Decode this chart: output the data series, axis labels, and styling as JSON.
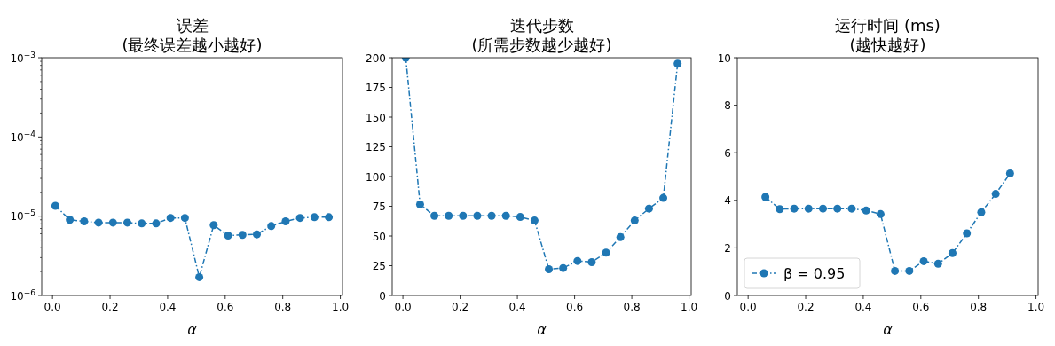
{
  "chart_data": [
    {
      "type": "line",
      "title": "误差\n(最终误差越小越好)",
      "xlabel": "α",
      "log": "y",
      "legend": false,
      "marker": "circle",
      "line_style": "dashdot",
      "xlim": [
        -0.0375,
        1.0075
      ],
      "xticks": [
        {
          "value": 0,
          "label": "0.0"
        },
        {
          "value": 0.2,
          "label": "0.2"
        },
        {
          "value": 0.4,
          "label": "0.4"
        },
        {
          "value": 0.6,
          "label": "0.6"
        },
        {
          "value": 0.8,
          "label": "0.8"
        },
        {
          "value": 1,
          "label": "1.0"
        }
      ],
      "ylim": [
        1e-06,
        0.001
      ],
      "yticks": [
        {
          "value": 1e-06,
          "label": "10$^{−6}$"
        },
        {
          "value": 1e-05,
          "label": "10$^{−5}$"
        },
        {
          "value": 0.0001,
          "label": "10$^{−4}$"
        },
        {
          "value": 0.001,
          "label": "10$^{−3}$"
        }
      ],
      "x": [
        0.01,
        0.06,
        0.11,
        0.16,
        0.21,
        0.26,
        0.31,
        0.36,
        0.41,
        0.46,
        0.51,
        0.56,
        0.61,
        0.66,
        0.71,
        0.76,
        0.81,
        0.86,
        0.91,
        0.96
      ],
      "series": [
        {
          "color": "#1f77b4",
          "values": [
            1.35e-05,
            9e-06,
            8.6e-06,
            8.3e-06,
            8.3e-06,
            8.3e-06,
            8.1e-06,
            8.1e-06,
            9.5e-06,
            9.5e-06,
            1.7e-06,
            7.7e-06,
            5.7e-06,
            5.8e-06,
            5.9e-06,
            7.5e-06,
            8.6e-06,
            9.5e-06,
            9.7e-06,
            9.7e-06
          ]
        }
      ]
    },
    {
      "type": "line",
      "title": "迭代步数\n(所需步数越少越好)",
      "xlabel": "α",
      "legend": false,
      "marker": "circle",
      "line_style": "dashdot",
      "xlim": [
        -0.0375,
        1.0075
      ],
      "xticks": [
        {
          "value": 0,
          "label": "0.0"
        },
        {
          "value": 0.2,
          "label": "0.2"
        },
        {
          "value": 0.4,
          "label": "0.4"
        },
        {
          "value": 0.6,
          "label": "0.6"
        },
        {
          "value": 0.8,
          "label": "0.8"
        },
        {
          "value": 1,
          "label": "1.0"
        }
      ],
      "ylim": [
        0,
        200
      ],
      "yticks": [
        0,
        25,
        50,
        75,
        100,
        125,
        150,
        175,
        200
      ],
      "x": [
        0.01,
        0.06,
        0.11,
        0.16,
        0.21,
        0.26,
        0.31,
        0.36,
        0.41,
        0.46,
        0.51,
        0.56,
        0.61,
        0.66,
        0.71,
        0.76,
        0.81,
        0.86,
        0.91,
        0.96
      ],
      "series": [
        {
          "color": "#1f77b4",
          "values": [
            200,
            76.5,
            67,
            67,
            67,
            67,
            67,
            67,
            66,
            63,
            22,
            23,
            29,
            28,
            36,
            49,
            63,
            73,
            82,
            195
          ]
        }
      ]
    },
    {
      "type": "line",
      "title": "运行时间 (ms)\n(越快越好)",
      "xlabel": "α",
      "legend": "lower left",
      "marker": "circle",
      "line_style": "dashdot",
      "xlim": [
        -0.0375,
        1.0075
      ],
      "xticks": [
        {
          "value": 0,
          "label": "0.0"
        },
        {
          "value": 0.2,
          "label": "0.2"
        },
        {
          "value": 0.4,
          "label": "0.4"
        },
        {
          "value": 0.6,
          "label": "0.6"
        },
        {
          "value": 0.8,
          "label": "0.8"
        },
        {
          "value": 1,
          "label": "1.0"
        }
      ],
      "ylim": [
        0,
        10
      ],
      "yticks": [
        0,
        2,
        4,
        6,
        8,
        10
      ],
      "series": [
        {
          "name": "β = 0.95",
          "color": "#1f77b4",
          "x": [
            0.06,
            0.11,
            0.16,
            0.21,
            0.26,
            0.31,
            0.36,
            0.41,
            0.46,
            0.51,
            0.56,
            0.61,
            0.66,
            0.71,
            0.76,
            0.81,
            0.86,
            0.91
          ],
          "values": [
            4.14,
            3.63,
            3.65,
            3.65,
            3.65,
            3.65,
            3.65,
            3.57,
            3.42,
            1.03,
            1.03,
            1.44,
            1.33,
            1.78,
            2.61,
            3.5,
            4.27,
            5.13
          ]
        }
      ]
    }
  ]
}
